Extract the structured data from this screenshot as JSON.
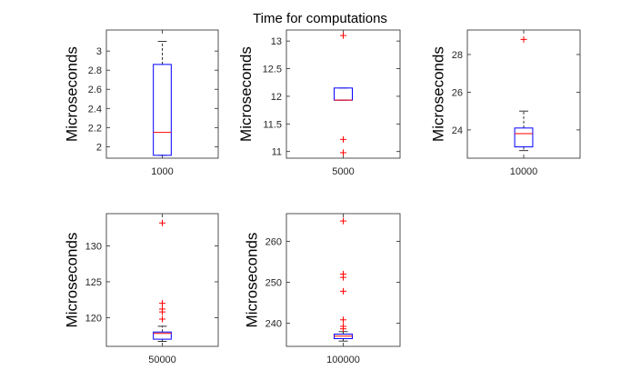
{
  "figure": {
    "title": "Time for computations"
  },
  "chart_data": [
    {
      "type": "box",
      "category": "1000",
      "ylabel": "Microseconds",
      "ylim": [
        1.88,
        3.22
      ],
      "yticks": [
        2,
        2.2,
        2.4,
        2.6,
        2.8,
        3
      ],
      "ytick_labels": [
        "2",
        "2.2",
        "2.4",
        "2.6",
        "2.8",
        "3"
      ],
      "q1": 1.91,
      "median": 2.15,
      "q3": 2.86,
      "whisker_low": 1.91,
      "whisker_high": 3.1,
      "outliers": []
    },
    {
      "type": "box",
      "category": "5000",
      "ylabel": "Microseconds",
      "ylim": [
        10.88,
        13.2
      ],
      "yticks": [
        11,
        11.5,
        12,
        12.5,
        13
      ],
      "ytick_labels": [
        "11",
        "11.5",
        "12",
        "12.5",
        "13"
      ],
      "q1": 11.93,
      "median": 11.93,
      "q3": 12.15,
      "whisker_low": 11.93,
      "whisker_high": 12.15,
      "outliers": [
        13.1,
        11.22,
        10.98
      ]
    },
    {
      "type": "box",
      "category": "10000",
      "ylabel": "Microseconds",
      "ylim": [
        22.5,
        29.3
      ],
      "yticks": [
        24,
        26,
        28
      ],
      "ytick_labels": [
        "24",
        "26",
        "28"
      ],
      "q1": 23.1,
      "median": 23.8,
      "q3": 24.1,
      "whisker_low": 22.9,
      "whisker_high": 25.0,
      "outliers": [
        28.8
      ]
    },
    {
      "type": "box",
      "category": "50000",
      "ylabel": "Microseconds",
      "ylim": [
        116.0,
        134.5
      ],
      "yticks": [
        120,
        125,
        130
      ],
      "ytick_labels": [
        "120",
        "125",
        "130"
      ],
      "q1": 117.0,
      "median": 117.8,
      "q3": 118.0,
      "whisker_low": 116.7,
      "whisker_high": 118.8,
      "outliers": [
        133.2,
        122.0,
        121.2,
        120.8,
        119.8
      ]
    },
    {
      "type": "box",
      "category": "100000",
      "ylabel": "Microseconds",
      "ylim": [
        234.3,
        266.8
      ],
      "yticks": [
        240,
        250,
        260
      ],
      "ytick_labels": [
        "240",
        "250",
        "260"
      ],
      "q1": 236.2,
      "median": 236.8,
      "q3": 237.3,
      "whisker_low": 235.6,
      "whisker_high": 237.9,
      "outliers": [
        265.0,
        252.0,
        251.2,
        247.8,
        240.8,
        239.2,
        238.6
      ]
    }
  ],
  "colors": {
    "box": "#0000ff",
    "median": "#ff0000",
    "whisker": "#000000",
    "outlier": "#ff0000",
    "axes": "#262626"
  }
}
